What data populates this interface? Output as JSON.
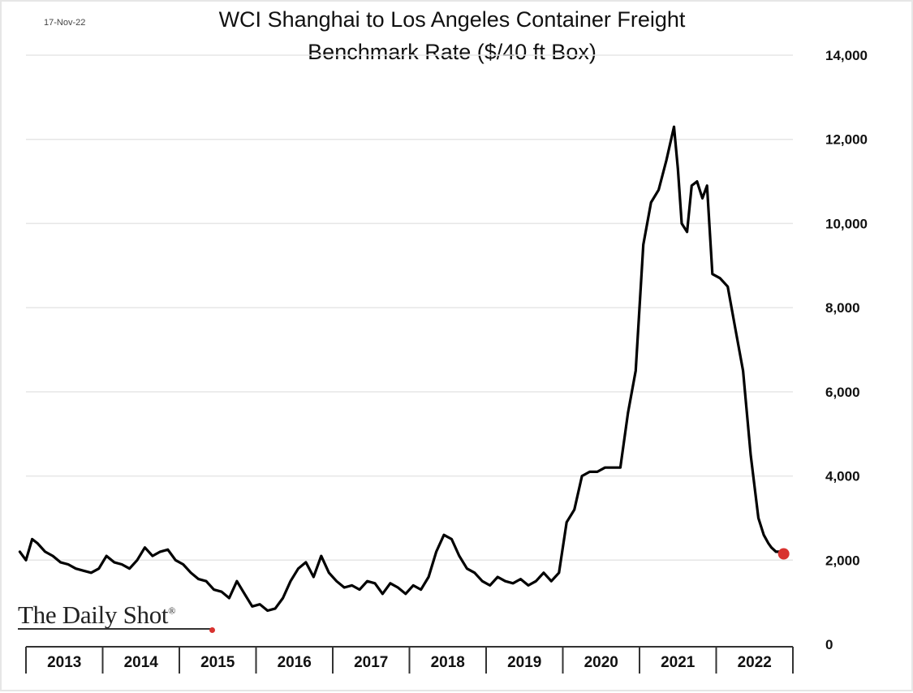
{
  "header": {
    "date": "17-Nov-22",
    "title_line1": "WCI Shanghai to Los Angeles Container Freight",
    "title_line2": "Benchmark Rate ($/40 ft Box)"
  },
  "branding": {
    "name": "The Daily Shot",
    "mark": "®"
  },
  "colors": {
    "line": "#000000",
    "grid": "#e6e6e6",
    "marker": "#d8322f",
    "axis": "#333333"
  },
  "chart_data": {
    "type": "line",
    "title": "WCI Shanghai to Los Angeles Container Freight Benchmark Rate ($/40 ft Box)",
    "xlabel": "",
    "ylabel": "",
    "ylim": [
      0,
      14000
    ],
    "xlim": [
      2013,
      2023
    ],
    "y_axis_position": "right",
    "grid": true,
    "yticks": [
      0,
      2000,
      4000,
      6000,
      8000,
      10000,
      12000,
      14000
    ],
    "ytick_labels": [
      "0",
      "2,000",
      "4,000",
      "6,000",
      "8,000",
      "10,000",
      "12,000",
      "14,000"
    ],
    "xtick_labels": [
      "2013",
      "2014",
      "2015",
      "2016",
      "2017",
      "2018",
      "2019",
      "2020",
      "2021",
      "2022"
    ],
    "series": [
      {
        "name": "WCI Shanghai to Los Angeles",
        "x": [
          2012.92,
          2013.0,
          2013.08,
          2013.15,
          2013.25,
          2013.35,
          2013.45,
          2013.55,
          2013.65,
          2013.75,
          2013.85,
          2013.95,
          2014.05,
          2014.15,
          2014.25,
          2014.35,
          2014.45,
          2014.55,
          2014.65,
          2014.75,
          2014.85,
          2014.95,
          2015.05,
          2015.15,
          2015.25,
          2015.35,
          2015.45,
          2015.55,
          2015.65,
          2015.75,
          2015.85,
          2015.95,
          2016.05,
          2016.15,
          2016.25,
          2016.35,
          2016.45,
          2016.55,
          2016.65,
          2016.75,
          2016.85,
          2016.95,
          2017.05,
          2017.15,
          2017.25,
          2017.35,
          2017.45,
          2017.55,
          2017.65,
          2017.75,
          2017.85,
          2017.95,
          2018.05,
          2018.15,
          2018.25,
          2018.35,
          2018.45,
          2018.55,
          2018.65,
          2018.75,
          2018.85,
          2018.95,
          2019.05,
          2019.15,
          2019.25,
          2019.35,
          2019.45,
          2019.55,
          2019.65,
          2019.75,
          2019.85,
          2019.95,
          2020.05,
          2020.15,
          2020.25,
          2020.35,
          2020.45,
          2020.55,
          2020.65,
          2020.75,
          2020.85,
          2020.95,
          2021.05,
          2021.15,
          2021.25,
          2021.35,
          2021.45,
          2021.5,
          2021.55,
          2021.62,
          2021.68,
          2021.75,
          2021.82,
          2021.88,
          2021.95,
          2022.05,
          2022.15,
          2022.25,
          2022.35,
          2022.45,
          2022.55,
          2022.62,
          2022.68,
          2022.72,
          2022.78,
          2022.82,
          2022.88
        ],
        "values": [
          2200,
          2000,
          2500,
          2400,
          2200,
          2100,
          1950,
          1900,
          1800,
          1750,
          1700,
          1800,
          2100,
          1950,
          1900,
          1800,
          2000,
          2300,
          2100,
          2200,
          2250,
          2000,
          1900,
          1700,
          1550,
          1500,
          1300,
          1250,
          1100,
          1500,
          1200,
          900,
          950,
          800,
          850,
          1100,
          1500,
          1800,
          1950,
          1600,
          2100,
          1700,
          1500,
          1350,
          1400,
          1300,
          1500,
          1450,
          1200,
          1450,
          1350,
          1200,
          1400,
          1300,
          1600,
          2200,
          2600,
          2500,
          2100,
          1800,
          1700,
          1500,
          1400,
          1600,
          1500,
          1450,
          1550,
          1400,
          1500,
          1700,
          1500,
          1700,
          2900,
          3200,
          4000,
          4100,
          4100,
          4200,
          4200,
          4200,
          5500,
          6500,
          9500,
          10500,
          10800,
          11500,
          12300,
          11300,
          10000,
          9800,
          10900,
          11000,
          10600,
          10900,
          8800,
          8700,
          8500,
          7500,
          6500,
          4500,
          3000,
          2600,
          2400,
          2300,
          2200,
          2200,
          2150
        ]
      }
    ],
    "last_point": {
      "x": 2022.88,
      "y": 2150
    }
  }
}
